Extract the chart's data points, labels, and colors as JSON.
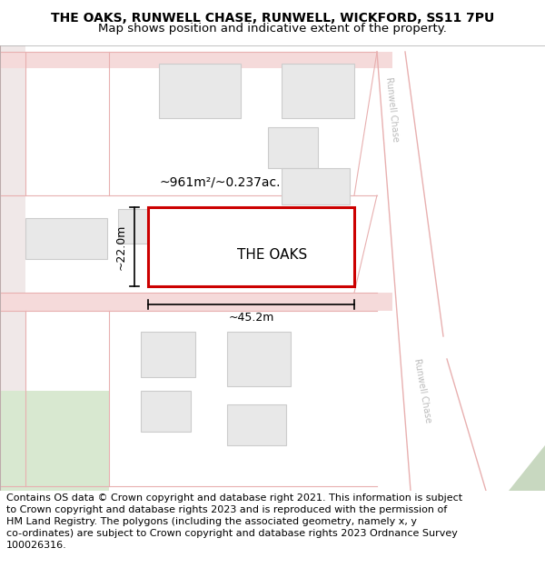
{
  "title_line1": "THE OAKS, RUNWELL CHASE, RUNWELL, WICKFORD, SS11 7PU",
  "title_line2": "Map shows position and indicative extent of the property.",
  "footer_text": "Contains OS data © Crown copyright and database right 2021. This information is subject\nto Crown copyright and database rights 2023 and is reproduced with the permission of\nHM Land Registry. The polygons (including the associated geometry, namely x, y\nco-ordinates) are subject to Crown copyright and database rights 2023 Ordnance Survey\n100026316.",
  "map_bg": "#ffffff",
  "road_color": "#f5dada",
  "road_stroke": "#e8b0b0",
  "building_fill": "#e8e8e8",
  "building_stroke": "#cccccc",
  "highlight_stroke": "#cc0000",
  "highlight_fill": "#ffffff",
  "area_label": "~961m²/~0.237ac.",
  "property_label": "THE OAKS",
  "dim_width": "~45.2m",
  "dim_height": "~22.0m",
  "title_fontsize": 10,
  "subtitle_fontsize": 9.5,
  "footer_fontsize": 8,
  "road_label_color": "#bbbbbb",
  "road_label_fontsize": 7
}
